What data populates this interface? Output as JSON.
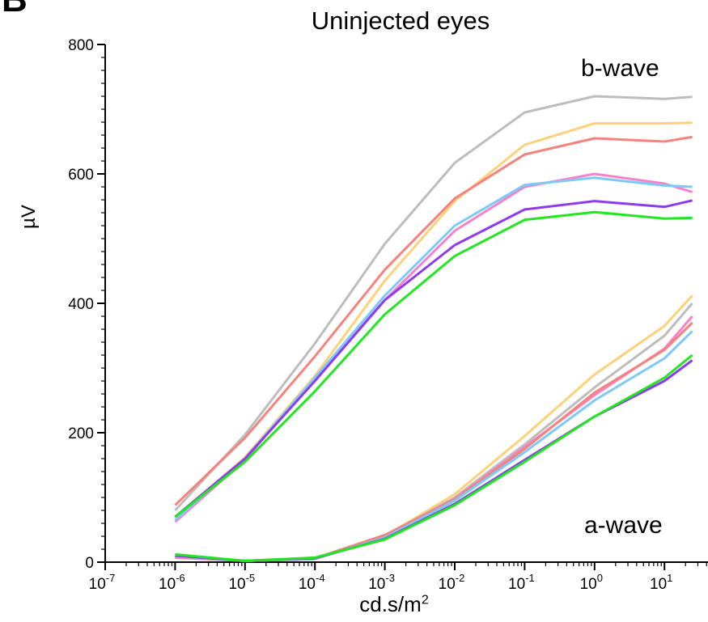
{
  "panel_label": "B",
  "chart_data": {
    "type": "line",
    "title": "Uninjected eyes",
    "xlabel_base": "cd.s/m",
    "xlabel_sup": "2",
    "ylabel": "µV",
    "x_scale": "log",
    "xlim": [
      1e-07,
      30
    ],
    "ylim": [
      0,
      800
    ],
    "y_ticks": [
      "0",
      "200",
      "400",
      "600",
      "800"
    ],
    "x_ticks": [
      {
        "base": "10",
        "exp": "-7",
        "value": 1e-07
      },
      {
        "base": "10",
        "exp": "-6",
        "value": 1e-06
      },
      {
        "base": "10",
        "exp": "-5",
        "value": 1e-05
      },
      {
        "base": "10",
        "exp": "-4",
        "value": 0.0001
      },
      {
        "base": "10",
        "exp": "-3",
        "value": 0.001
      },
      {
        "base": "10",
        "exp": "-2",
        "value": 0.01
      },
      {
        "base": "10",
        "exp": "-1",
        "value": 0.1
      },
      {
        "base": "10",
        "exp": "0",
        "value": 1
      },
      {
        "base": "10",
        "exp": "1",
        "value": 10
      }
    ],
    "x": [
      1e-06,
      1e-05,
      0.0001,
      0.001,
      0.01,
      0.1,
      1,
      10,
      25
    ],
    "annotations": {
      "b_wave": "b-wave",
      "a_wave": "a-wave"
    },
    "grid": false,
    "series": [
      {
        "group": "b-wave",
        "color": "#bdbdbd",
        "values": [
          80,
          197,
          338,
          492,
          617,
          695,
          720,
          716,
          719
        ]
      },
      {
        "group": "b-wave",
        "color": "#fdd17a",
        "values": [
          68,
          162,
          288,
          435,
          558,
          645,
          678,
          678,
          679
        ]
      },
      {
        "group": "b-wave",
        "color": "#f4837d",
        "values": [
          88,
          192,
          318,
          452,
          562,
          630,
          655,
          650,
          657
        ]
      },
      {
        "group": "b-wave",
        "color": "#f882c9",
        "values": [
          62,
          158,
          285,
          405,
          512,
          580,
          600,
          585,
          572
        ]
      },
      {
        "group": "b-wave",
        "color": "#7dcaf6",
        "values": [
          65,
          160,
          285,
          412,
          520,
          583,
          594,
          582,
          580
        ]
      },
      {
        "group": "b-wave",
        "color": "#8e3bf0",
        "values": [
          70,
          160,
          280,
          405,
          490,
          545,
          558,
          549,
          559
        ]
      },
      {
        "group": "b-wave",
        "color": "#22e61f",
        "values": [
          70,
          155,
          264,
          383,
          473,
          529,
          541,
          531,
          532
        ]
      },
      {
        "group": "a-wave",
        "color": "#fdd17a",
        "values": [
          8,
          2,
          5,
          40,
          105,
          195,
          290,
          365,
          412
        ]
      },
      {
        "group": "a-wave",
        "color": "#bdbdbd",
        "values": [
          9,
          2,
          5,
          40,
          100,
          182,
          270,
          350,
          400
        ]
      },
      {
        "group": "a-wave",
        "color": "#f882c9",
        "values": [
          7,
          2,
          5,
          41,
          98,
          178,
          258,
          330,
          380
        ]
      },
      {
        "group": "a-wave",
        "color": "#f4837d",
        "values": [
          8,
          2,
          6,
          42,
          97,
          175,
          262,
          328,
          370
        ]
      },
      {
        "group": "a-wave",
        "color": "#7dcaf6",
        "values": [
          9,
          2,
          5,
          38,
          95,
          170,
          250,
          315,
          357
        ]
      },
      {
        "group": "a-wave",
        "color": "#8e3bf0",
        "values": [
          10,
          2,
          6,
          36,
          90,
          158,
          225,
          280,
          312
        ]
      },
      {
        "group": "a-wave",
        "color": "#22e61f",
        "values": [
          12,
          2,
          7,
          35,
          88,
          155,
          225,
          285,
          320
        ]
      }
    ]
  }
}
